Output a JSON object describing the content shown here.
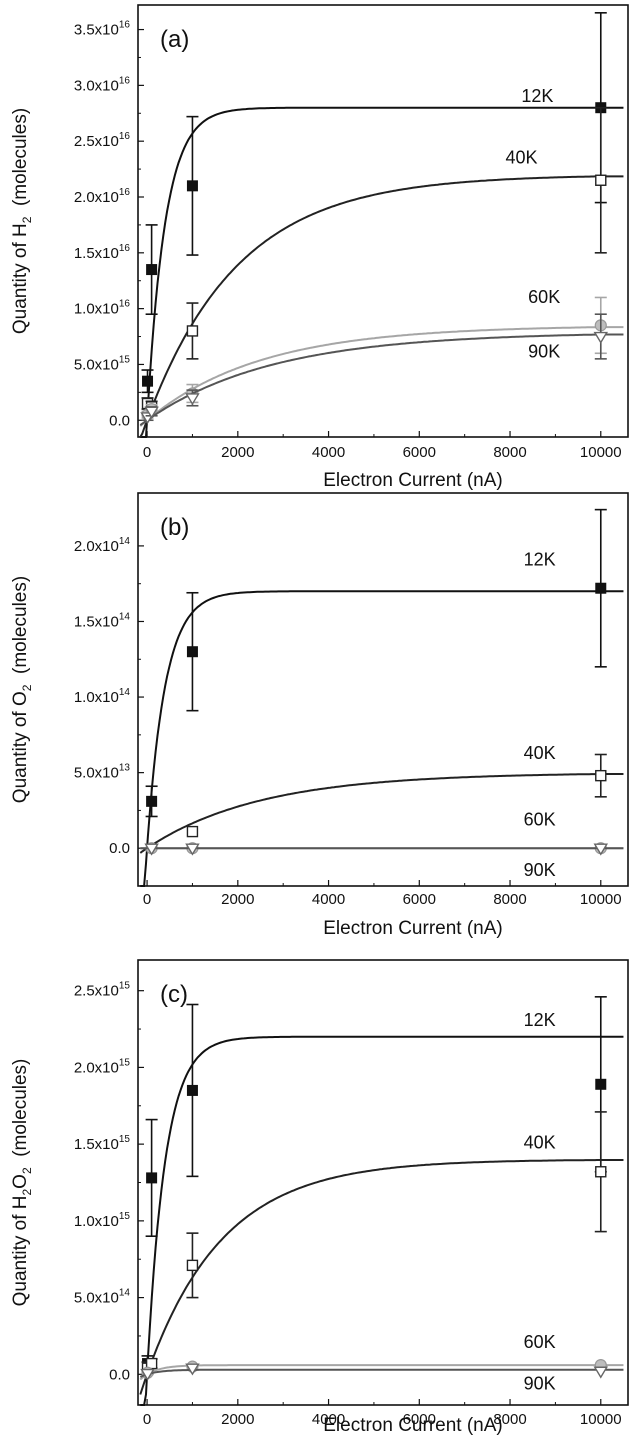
{
  "chart_data": [
    {
      "type": "scatter",
      "panel_label": "(a)",
      "xlabel": "Electron Current (nA)",
      "ylabel": "Quantity of H",
      "ylabel_sub": "2",
      "ylabel_suffix": "(molecules)",
      "xlim": [
        -200,
        10600
      ],
      "ylim": [
        -1500000000000000.0,
        3.72e+16
      ],
      "xticks": [
        0,
        2000,
        4000,
        6000,
        8000,
        10000
      ],
      "xtick_labels": [
        "0",
        "2000",
        "4000",
        "6000",
        "8000",
        "10000"
      ],
      "yticks": [
        0,
        5000000000000000.0,
        1e+16,
        1.5e+16,
        2e+16,
        2.5e+16,
        3e+16,
        3.5e+16
      ],
      "ytick_labels": [
        {
          "mant": "0.0",
          "exp": ""
        },
        {
          "mant": "5.0x10",
          "exp": "15"
        },
        {
          "mant": "1.0x10",
          "exp": "16"
        },
        {
          "mant": "1.5x10",
          "exp": "16"
        },
        {
          "mant": "2.0x10",
          "exp": "16"
        },
        {
          "mant": "2.5x10",
          "exp": "16"
        },
        {
          "mant": "3.0x10",
          "exp": "16"
        },
        {
          "mant": "3.5x10",
          "exp": "16"
        }
      ],
      "series": [
        {
          "name": "12K",
          "color": "#111111",
          "marker": "filled-square",
          "x": [
            10,
            100,
            1000,
            10000
          ],
          "y": [
            3500000000000000.0,
            1.35e+16,
            2.1e+16,
            2.8e+16
          ],
          "err": [
            1000000000000000.0,
            4000000000000000.0,
            6200000000000000.0,
            8500000000000000.0
          ],
          "fit": {
            "a": 2.8e+16,
            "k": 0.0025
          },
          "label_pos": [
            8250,
            2.85e+16
          ]
        },
        {
          "name": "40K",
          "color": "#222222",
          "marker": "open-square",
          "x": [
            10,
            100,
            1000,
            10000
          ],
          "y": [
            1500000000000000.0,
            1200000000000000.0,
            8000000000000000.0,
            2.15e+16
          ],
          "err": [
            500000000000000.0,
            500000000000000.0,
            2500000000000000.0,
            6500000000000000.0
          ],
          "fit": {
            "a": 2.2e+16,
            "k": 0.0005
          },
          "label_pos": [
            7900,
            2.3e+16
          ]
        },
        {
          "name": "60K",
          "color": "#a6a6a6",
          "marker": "circle",
          "x": [
            10,
            100,
            1000,
            10000
          ],
          "y": [
            500000000000000.0,
            1000000000000000.0,
            2400000000000000.0,
            8500000000000000.0
          ],
          "err": [
            300000000000000.0,
            400000000000000.0,
            800000000000000.0,
            2500000000000000.0
          ],
          "fit": {
            "a": 8500000000000000.0,
            "k": 0.0004
          },
          "label_pos": [
            8400,
            1.05e+16
          ]
        },
        {
          "name": "90K",
          "color": "#555555",
          "marker": "triangle-down",
          "x": [
            10,
            100,
            1000,
            10000
          ],
          "y": [
            300000000000000.0,
            800000000000000.0,
            2000000000000000.0,
            7500000000000000.0
          ],
          "err": [
            300000000000000.0,
            400000000000000.0,
            700000000000000.0,
            2000000000000000.0
          ],
          "fit": {
            "a": 7900000000000000.0,
            "k": 0.00036
          },
          "label_pos": [
            8400,
            5600000000000000.0
          ]
        }
      ]
    },
    {
      "type": "scatter",
      "panel_label": "(b)",
      "xlabel": "Electron Current (nA)",
      "ylabel": "Quantity of O",
      "ylabel_sub": "2",
      "ylabel_suffix": "(molecules)",
      "xlim": [
        -200,
        10600
      ],
      "ylim": [
        -25000000000000.0,
        235000000000000.0
      ],
      "xticks": [
        0,
        2000,
        4000,
        6000,
        8000,
        10000
      ],
      "xtick_labels": [
        "0",
        "2000",
        "4000",
        "6000",
        "8000",
        "10000"
      ],
      "yticks": [
        0,
        50000000000000.0,
        100000000000000.0,
        150000000000000.0,
        200000000000000.0
      ],
      "ytick_labels": [
        {
          "mant": "0.0",
          "exp": ""
        },
        {
          "mant": "5.0x10",
          "exp": "13"
        },
        {
          "mant": "1.0x10",
          "exp": "14"
        },
        {
          "mant": "1.5x10",
          "exp": "14"
        },
        {
          "mant": "2.0x10",
          "exp": "14"
        }
      ],
      "series": [
        {
          "name": "12K",
          "color": "#111111",
          "marker": "filled-square",
          "x": [
            100,
            1000,
            10000
          ],
          "y": [
            31000000000000.0,
            130000000000000.0,
            172000000000000.0
          ],
          "err": [
            10000000000000.0,
            39000000000000.0,
            52000000000000.0
          ],
          "fit": {
            "a": 170000000000000.0,
            "k": 0.0025
          },
          "label_pos": [
            8300,
            187000000000000.0
          ]
        },
        {
          "name": "40K",
          "color": "#222222",
          "marker": "open-square",
          "x": [
            1000,
            10000
          ],
          "y": [
            11000000000000.0,
            48000000000000.0
          ],
          "err": [
            0,
            14000000000000.0
          ],
          "fit": {
            "a": 50000000000000.0,
            "k": 0.0004
          },
          "label_pos": [
            8300,
            59000000000000.0
          ]
        },
        {
          "name": "60K",
          "color": "#a6a6a6",
          "marker": "circle",
          "x": [
            100,
            1000,
            10000
          ],
          "y": [
            0,
            0,
            0
          ],
          "err": [
            0,
            0,
            0
          ],
          "fit": {
            "a": 0,
            "k": 0.0004
          },
          "label_pos": [
            8300,
            15000000000000.0
          ]
        },
        {
          "name": "90K",
          "color": "#555555",
          "marker": "triangle-down",
          "x": [
            100,
            1000,
            10000
          ],
          "y": [
            0,
            0,
            0
          ],
          "err": [
            0,
            0,
            0
          ],
          "fit": {
            "a": 0,
            "k": 0.0004
          },
          "label_pos": [
            8300,
            -18500000000000.0
          ]
        }
      ]
    },
    {
      "type": "scatter",
      "panel_label": "(c)",
      "xlabel": "Electron Current (nA)",
      "ylabel": "Quantity of H",
      "ylabel_sub": "2",
      "ylabel_mid": "O",
      "ylabel_sub2": "2",
      "ylabel_suffix": "(molecules)",
      "xlim": [
        -200,
        10600
      ],
      "ylim": [
        -200000000000000.0,
        2700000000000000.0
      ],
      "xticks": [
        0,
        2000,
        4000,
        6000,
        8000,
        10000
      ],
      "xtick_labels": [
        "0",
        "2000",
        "4000",
        "6000",
        "8000",
        "10000"
      ],
      "yticks": [
        0,
        500000000000000.0,
        1000000000000000.0,
        1500000000000000.0,
        2000000000000000.0,
        2500000000000000.0
      ],
      "ytick_labels": [
        {
          "mant": "0.0",
          "exp": ""
        },
        {
          "mant": "5.0x10",
          "exp": "14"
        },
        {
          "mant": "1.0x10",
          "exp": "15"
        },
        {
          "mant": "1.5x10",
          "exp": "15"
        },
        {
          "mant": "2.0x10",
          "exp": "15"
        },
        {
          "mant": "2.5x10",
          "exp": "15"
        }
      ],
      "series": [
        {
          "name": "12K",
          "color": "#111111",
          "marker": "filled-square",
          "x": [
            10,
            100,
            1000,
            10000
          ],
          "y": [
            70000000000000.0,
            1280000000000000.0,
            1850000000000000.0,
            1890000000000000.0
          ],
          "err": [
            50000000000000.0,
            380000000000000.0,
            560000000000000.0,
            570000000000000.0
          ],
          "fit": {
            "a": 2200000000000000.0,
            "k": 0.0025
          },
          "label_pos": [
            8300,
            2270000000000000.0
          ]
        },
        {
          "name": "40K",
          "color": "#222222",
          "marker": "open-square",
          "x": [
            10,
            100,
            1000,
            10000
          ],
          "y": [
            40000000000000.0,
            70000000000000.0,
            710000000000000.0,
            1320000000000000.0
          ],
          "err": [
            40000000000000.0,
            30000000000000.0,
            210000000000000.0,
            390000000000000.0
          ],
          "fit": {
            "a": 1400000000000000.0,
            "k": 0.0006
          },
          "label_pos": [
            8300,
            1470000000000000.0
          ]
        },
        {
          "name": "60K",
          "color": "#a6a6a6",
          "marker": "circle",
          "x": [
            10,
            1000,
            10000
          ],
          "y": [
            10000000000000.0,
            50000000000000.0,
            60000000000000.0
          ],
          "err": [
            0,
            0,
            0
          ],
          "fit": {
            "a": 60000000000000.0,
            "k": 0.003
          },
          "label_pos": [
            8300,
            170000000000000.0
          ]
        },
        {
          "name": "90K",
          "color": "#555555",
          "marker": "triangle-down",
          "x": [
            10,
            1000,
            10000
          ],
          "y": [
            5000000000000.0,
            40000000000000.0,
            20000000000000.0
          ],
          "err": [
            0,
            0,
            0
          ],
          "fit": {
            "a": 30000000000000.0,
            "k": 0.003
          },
          "label_pos": [
            8300,
            -100000000000000.0
          ]
        }
      ]
    }
  ]
}
